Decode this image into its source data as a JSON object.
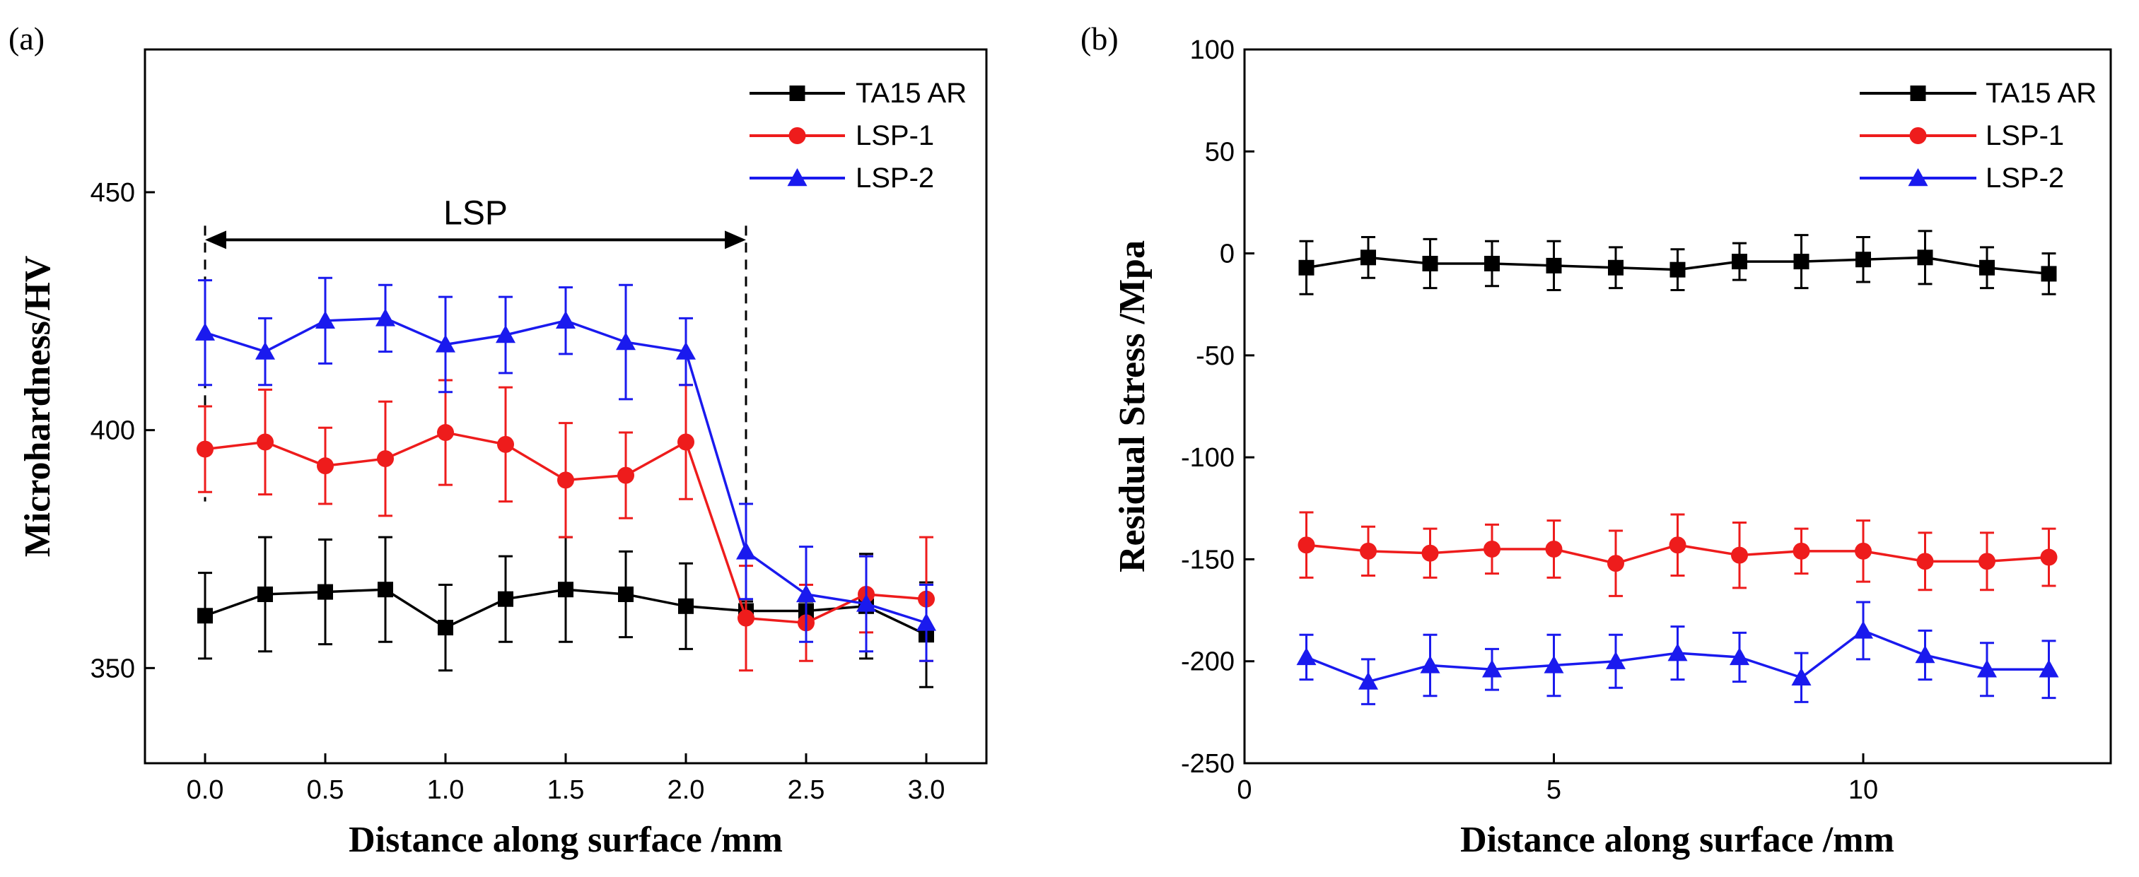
{
  "colors": {
    "TA15 AR": "#000000",
    "LSP-1": "#ee1c1c",
    "LSP-2": "#1a1aee"
  },
  "chart_data": [
    {
      "type": "line",
      "panel": "(a)",
      "title": "",
      "xlabel": "Distance along surface /mm",
      "ylabel": "Microhardness/HV",
      "xlim": [
        -0.25,
        3.25
      ],
      "ylim": [
        330,
        480
      ],
      "xticks": [
        0.0,
        0.5,
        1.0,
        1.5,
        2.0,
        2.5,
        3.0
      ],
      "xtick_labels": [
        "0.0",
        "0.5",
        "1.0",
        "1.5",
        "2.0",
        "2.5",
        "3.0"
      ],
      "yticks": [
        350,
        400,
        450
      ],
      "ytick_labels": [
        "350",
        "400",
        "450"
      ],
      "legend_position": "top-right",
      "annotation": {
        "text": "LSP",
        "x_start": 0.0,
        "x_end": 2.25,
        "y": 440
      },
      "series": [
        {
          "name": "TA15 AR",
          "marker": "square",
          "x": [
            0,
            0.25,
            0.5,
            0.75,
            1.0,
            1.25,
            1.5,
            1.75,
            2.0,
            2.25,
            2.5,
            2.75,
            3.0
          ],
          "y": [
            361,
            365.5,
            366,
            366.5,
            358.5,
            364.5,
            366.5,
            365.5,
            363,
            362,
            362,
            363,
            357
          ],
          "err": [
            9,
            12,
            11,
            11,
            9,
            9,
            11,
            9,
            9,
            2,
            2,
            11,
            11
          ]
        },
        {
          "name": "LSP-1",
          "marker": "circle",
          "x": [
            0,
            0.25,
            0.5,
            0.75,
            1.0,
            1.25,
            1.5,
            1.75,
            2.0,
            2.25,
            2.5,
            2.75,
            3.0
          ],
          "y": [
            396,
            397.5,
            392.5,
            394,
            399.5,
            397,
            389.5,
            390.5,
            397.5,
            360.5,
            359.5,
            365.5,
            364.5
          ],
          "err": [
            9,
            11,
            8,
            12,
            11,
            12,
            12,
            9,
            12,
            11,
            8,
            8,
            13
          ]
        },
        {
          "name": "LSP-2",
          "marker": "triangle",
          "x": [
            0,
            0.25,
            0.5,
            0.75,
            1.0,
            1.25,
            1.5,
            1.75,
            2.0,
            2.25,
            2.5,
            2.75,
            3.0
          ],
          "y": [
            420.5,
            416.5,
            423,
            423.5,
            418,
            420,
            423,
            418.5,
            416.5,
            374.5,
            365.5,
            363.5,
            359.5
          ],
          "err": [
            11,
            7,
            9,
            7,
            10,
            8,
            7,
            12,
            7,
            10,
            10,
            10,
            8
          ]
        }
      ]
    },
    {
      "type": "line",
      "panel": "(b)",
      "title": "",
      "xlabel": "Distance along surface /mm",
      "ylabel": "Residual Stress /Mpa",
      "xlim": [
        0,
        14
      ],
      "ylim": [
        -250,
        100
      ],
      "xticks": [
        0,
        5,
        10
      ],
      "xtick_labels": [
        "0",
        "5",
        "10"
      ],
      "yticks": [
        -250,
        -200,
        -150,
        -100,
        -50,
        0,
        50,
        100
      ],
      "ytick_labels": [
        "-250",
        "-200",
        "-150",
        "-100",
        "-50",
        "0",
        "50",
        "100"
      ],
      "legend_position": "top-right",
      "series": [
        {
          "name": "TA15 AR",
          "marker": "square",
          "x": [
            1,
            2,
            3,
            4,
            5,
            6,
            7,
            8,
            9,
            10,
            11,
            12,
            13
          ],
          "y": [
            -7,
            -2,
            -5,
            -5,
            -6,
            -7,
            -8,
            -4,
            -4,
            -3,
            -2,
            -7,
            -10
          ],
          "err": [
            13,
            10,
            12,
            11,
            12,
            10,
            10,
            9,
            13,
            11,
            13,
            10,
            10
          ]
        },
        {
          "name": "LSP-1",
          "marker": "circle",
          "x": [
            1,
            2,
            3,
            4,
            5,
            6,
            7,
            8,
            9,
            10,
            11,
            12,
            13
          ],
          "y": [
            -143,
            -146,
            -147,
            -145,
            -145,
            -152,
            -143,
            -148,
            -146,
            -146,
            -151,
            -151,
            -149
          ],
          "err": [
            16,
            12,
            12,
            12,
            14,
            16,
            15,
            16,
            11,
            15,
            14,
            14,
            14
          ]
        },
        {
          "name": "LSP-2",
          "marker": "triangle",
          "x": [
            1,
            2,
            3,
            4,
            5,
            6,
            7,
            8,
            9,
            10,
            11,
            12,
            13
          ],
          "y": [
            -198,
            -210,
            -202,
            -204,
            -202,
            -200,
            -196,
            -198,
            -208,
            -185,
            -197,
            -204,
            -204
          ],
          "err": [
            11,
            11,
            15,
            10,
            15,
            13,
            13,
            12,
            12,
            14,
            12,
            13,
            14
          ]
        }
      ]
    }
  ]
}
